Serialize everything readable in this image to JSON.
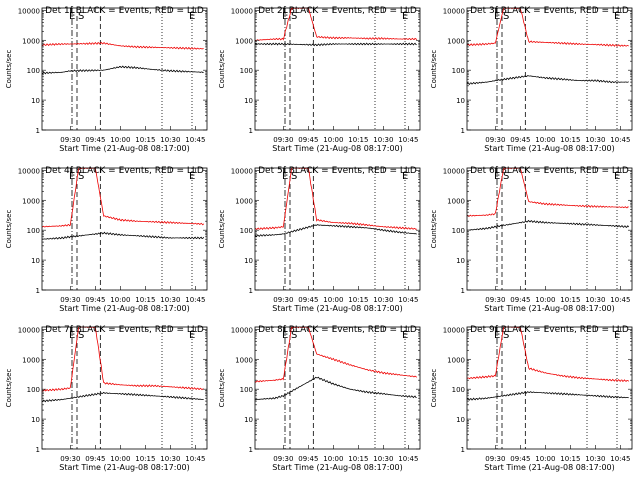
{
  "axis_labels": {
    "ylabel": "Counts/sec",
    "xlabel": "Start Time (21-Aug-08 08:17:00)",
    "xticks": [
      "09:30",
      "09:45",
      "10:00",
      "10:15",
      "10:30",
      "10:45"
    ],
    "yticks": [
      "1",
      "10",
      "100",
      "1000",
      "10000"
    ]
  },
  "region_markers": [
    "E",
    "S",
    "E"
  ],
  "colors": {
    "events": "#000000",
    "lld": "#ee0000",
    "axes": "#000000"
  },
  "chart_data": [
    {
      "type": "line",
      "title": "Det 1f BLACK = Events, RED = LLD",
      "x_range": [
        "09:13",
        "10:52"
      ],
      "ylim": [
        1,
        12000
      ],
      "y_scale": "log",
      "vertical_lines": [
        {
          "x": "09:31",
          "style": "dash-dot"
        },
        {
          "x": "09:34",
          "style": "dashed"
        },
        {
          "x": "09:48",
          "style": "dashed"
        },
        {
          "x": "10:25",
          "style": "dotted"
        },
        {
          "x": "10:43",
          "style": "dotted"
        }
      ],
      "series": [
        {
          "name": "Events",
          "color": "#000000",
          "x": [
            "09:13",
            "09:25",
            "09:30",
            "09:50",
            "10:00",
            "10:10",
            "10:20",
            "10:30",
            "10:40",
            "10:50"
          ],
          "values": [
            80,
            85,
            95,
            100,
            130,
            120,
            105,
            95,
            90,
            85
          ]
        },
        {
          "name": "LLD",
          "color": "#ee0000",
          "x": [
            "09:13",
            "09:25",
            "09:30",
            "09:50",
            "10:00",
            "10:10",
            "10:20",
            "10:30",
            "10:40",
            "10:50"
          ],
          "values": [
            700,
            750,
            750,
            800,
            650,
            600,
            580,
            560,
            540,
            520
          ]
        }
      ]
    },
    {
      "type": "line",
      "title": "Det 2f BLACK = Events, RED = LLD",
      "x_range": [
        "09:13",
        "10:52"
      ],
      "ylim": [
        1,
        12000
      ],
      "y_scale": "log",
      "vertical_lines": [
        {
          "x": "09:31",
          "style": "dash-dot"
        },
        {
          "x": "09:34",
          "style": "dashed"
        },
        {
          "x": "09:48",
          "style": "dashed"
        },
        {
          "x": "10:25",
          "style": "dotted"
        },
        {
          "x": "10:43",
          "style": "dotted"
        }
      ],
      "series": [
        {
          "name": "Events",
          "color": "#000000",
          "x": [
            "09:13",
            "09:25",
            "09:30",
            "09:50",
            "10:00",
            "10:10",
            "10:20",
            "10:30",
            "10:40",
            "10:50"
          ],
          "values": [
            750,
            750,
            750,
            700,
            750,
            750,
            750,
            750,
            750,
            750
          ]
        },
        {
          "name": "LLD",
          "color": "#ee0000",
          "x": [
            "09:13",
            "09:25",
            "09:30",
            "09:35",
            "09:45",
            "09:50",
            "10:00",
            "10:10",
            "10:20",
            "10:30",
            "10:40",
            "10:50"
          ],
          "values": [
            1000,
            1100,
            1100,
            12000,
            12000,
            1300,
            1200,
            1200,
            1150,
            1150,
            1100,
            1100
          ]
        }
      ]
    },
    {
      "type": "line",
      "title": "Det 3f BLACK = Events, RED = LLD",
      "x_range": [
        "09:13",
        "10:52"
      ],
      "ylim": [
        1,
        12000
      ],
      "y_scale": "log",
      "vertical_lines": [
        {
          "x": "09:31",
          "style": "dash-dot"
        },
        {
          "x": "09:34",
          "style": "dashed"
        },
        {
          "x": "09:48",
          "style": "dashed"
        },
        {
          "x": "10:25",
          "style": "dotted"
        },
        {
          "x": "10:43",
          "style": "dotted"
        }
      ],
      "series": [
        {
          "name": "Events",
          "color": "#000000",
          "x": [
            "09:13",
            "09:25",
            "09:30",
            "09:50",
            "10:00",
            "10:10",
            "10:20",
            "10:30",
            "10:40",
            "10:50"
          ],
          "values": [
            35,
            40,
            45,
            65,
            55,
            50,
            45,
            45,
            40,
            40
          ]
        },
        {
          "name": "LLD",
          "color": "#ee0000",
          "x": [
            "09:13",
            "09:25",
            "09:30",
            "09:35",
            "09:45",
            "09:50",
            "10:00",
            "10:10",
            "10:20",
            "10:30",
            "10:40",
            "10:50"
          ],
          "values": [
            700,
            750,
            800,
            12000,
            12000,
            900,
            850,
            800,
            750,
            720,
            680,
            650
          ]
        }
      ]
    },
    {
      "type": "line",
      "title": "Det 4f BLACK = Events, RED = LLD",
      "x_range": [
        "09:13",
        "10:52"
      ],
      "ylim": [
        1,
        12000
      ],
      "y_scale": "log",
      "vertical_lines": [
        {
          "x": "09:31",
          "style": "dash-dot"
        },
        {
          "x": "09:34",
          "style": "dashed"
        },
        {
          "x": "09:48",
          "style": "dashed"
        },
        {
          "x": "10:25",
          "style": "dotted"
        },
        {
          "x": "10:43",
          "style": "dotted"
        }
      ],
      "series": [
        {
          "name": "Events",
          "color": "#000000",
          "x": [
            "09:13",
            "09:25",
            "09:30",
            "09:50",
            "10:00",
            "10:10",
            "10:20",
            "10:30",
            "10:40",
            "10:50"
          ],
          "values": [
            50,
            55,
            60,
            80,
            70,
            65,
            60,
            55,
            55,
            55
          ]
        },
        {
          "name": "LLD",
          "color": "#ee0000",
          "x": [
            "09:13",
            "09:25",
            "09:30",
            "09:35",
            "09:45",
            "09:50",
            "10:00",
            "10:10",
            "10:20",
            "10:30",
            "10:40",
            "10:50"
          ],
          "values": [
            130,
            140,
            150,
            12000,
            12000,
            300,
            220,
            200,
            190,
            180,
            170,
            160
          ]
        }
      ]
    },
    {
      "type": "line",
      "title": "Det 5f BLACK = Events, RED = LLD",
      "x_range": [
        "09:13",
        "10:52"
      ],
      "ylim": [
        1,
        12000
      ],
      "y_scale": "log",
      "vertical_lines": [
        {
          "x": "09:31",
          "style": "dash-dot"
        },
        {
          "x": "09:34",
          "style": "dashed"
        },
        {
          "x": "09:48",
          "style": "dashed"
        },
        {
          "x": "10:25",
          "style": "dotted"
        },
        {
          "x": "10:43",
          "style": "dotted"
        }
      ],
      "series": [
        {
          "name": "Events",
          "color": "#000000",
          "x": [
            "09:13",
            "09:25",
            "09:30",
            "09:50",
            "10:00",
            "10:10",
            "10:20",
            "10:30",
            "10:40",
            "10:50"
          ],
          "values": [
            65,
            70,
            75,
            150,
            140,
            130,
            120,
            100,
            85,
            75
          ]
        },
        {
          "name": "LLD",
          "color": "#ee0000",
          "x": [
            "09:13",
            "09:25",
            "09:30",
            "09:35",
            "09:45",
            "09:50",
            "10:00",
            "10:10",
            "10:20",
            "10:30",
            "10:40",
            "10:50"
          ],
          "values": [
            110,
            120,
            130,
            12000,
            12000,
            220,
            180,
            170,
            150,
            130,
            120,
            110
          ]
        }
      ]
    },
    {
      "type": "line",
      "title": "Det 6f BLACK = Events, RED = LLD",
      "x_range": [
        "09:13",
        "10:52"
      ],
      "ylim": [
        1,
        12000
      ],
      "y_scale": "log",
      "vertical_lines": [
        {
          "x": "09:31",
          "style": "dash-dot"
        },
        {
          "x": "09:34",
          "style": "dashed"
        },
        {
          "x": "09:48",
          "style": "dashed"
        },
        {
          "x": "10:25",
          "style": "dotted"
        },
        {
          "x": "10:43",
          "style": "dotted"
        }
      ],
      "series": [
        {
          "name": "Events",
          "color": "#000000",
          "x": [
            "09:13",
            "09:25",
            "09:30",
            "09:50",
            "10:00",
            "10:10",
            "10:20",
            "10:30",
            "10:40",
            "10:50"
          ],
          "values": [
            100,
            115,
            130,
            200,
            180,
            170,
            160,
            150,
            140,
            130
          ]
        },
        {
          "name": "LLD",
          "color": "#ee0000",
          "x": [
            "09:13",
            "09:25",
            "09:30",
            "09:35",
            "09:45",
            "09:50",
            "10:00",
            "10:10",
            "10:20",
            "10:30",
            "10:40",
            "10:50"
          ],
          "values": [
            300,
            320,
            350,
            12000,
            12000,
            900,
            750,
            700,
            650,
            620,
            600,
            580
          ]
        }
      ]
    },
    {
      "type": "line",
      "title": "Det 7f BLACK = Events, RED = LLD",
      "x_range": [
        "09:13",
        "10:52"
      ],
      "ylim": [
        1,
        12000
      ],
      "y_scale": "log",
      "vertical_lines": [
        {
          "x": "09:31",
          "style": "dash-dot"
        },
        {
          "x": "09:34",
          "style": "dashed"
        },
        {
          "x": "09:48",
          "style": "dashed"
        },
        {
          "x": "10:25",
          "style": "dotted"
        },
        {
          "x": "10:43",
          "style": "dotted"
        }
      ],
      "series": [
        {
          "name": "Events",
          "color": "#000000",
          "x": [
            "09:13",
            "09:25",
            "09:30",
            "09:50",
            "10:00",
            "10:10",
            "10:20",
            "10:30",
            "10:40",
            "10:50"
          ],
          "values": [
            40,
            45,
            50,
            75,
            70,
            65,
            60,
            55,
            50,
            45
          ]
        },
        {
          "name": "LLD",
          "color": "#ee0000",
          "x": [
            "09:13",
            "09:25",
            "09:30",
            "09:35",
            "09:45",
            "09:50",
            "10:00",
            "10:10",
            "10:20",
            "10:30",
            "10:40",
            "10:50"
          ],
          "values": [
            90,
            100,
            110,
            12000,
            12000,
            160,
            140,
            130,
            130,
            120,
            110,
            100
          ]
        }
      ]
    },
    {
      "type": "line",
      "title": "Det 8f BLACK = Events, RED = LLD",
      "x_range": [
        "09:13",
        "10:52"
      ],
      "ylim": [
        1,
        12000
      ],
      "y_scale": "log",
      "vertical_lines": [
        {
          "x": "09:31",
          "style": "dash-dot"
        },
        {
          "x": "09:34",
          "style": "dashed"
        },
        {
          "x": "09:48",
          "style": "dashed"
        },
        {
          "x": "10:25",
          "style": "dotted"
        },
        {
          "x": "10:43",
          "style": "dotted"
        }
      ],
      "series": [
        {
          "name": "Events",
          "color": "#000000",
          "x": [
            "09:13",
            "09:25",
            "09:30",
            "09:50",
            "10:00",
            "10:10",
            "10:20",
            "10:30",
            "10:40",
            "10:50"
          ],
          "values": [
            45,
            50,
            60,
            250,
            150,
            100,
            80,
            70,
            60,
            55
          ]
        },
        {
          "name": "LLD",
          "color": "#ee0000",
          "x": [
            "09:13",
            "09:25",
            "09:30",
            "09:35",
            "09:45",
            "09:50",
            "10:00",
            "10:10",
            "10:20",
            "10:30",
            "10:40",
            "10:50"
          ],
          "values": [
            180,
            200,
            220,
            12000,
            12000,
            1500,
            1000,
            650,
            450,
            350,
            300,
            260
          ]
        }
      ]
    },
    {
      "type": "line",
      "title": "Det 9f BLACK = Events, RED = LLD",
      "x_range": [
        "09:13",
        "10:52"
      ],
      "ylim": [
        1,
        12000
      ],
      "y_scale": "log",
      "vertical_lines": [
        {
          "x": "09:31",
          "style": "dash-dot"
        },
        {
          "x": "09:34",
          "style": "dashed"
        },
        {
          "x": "09:48",
          "style": "dashed"
        },
        {
          "x": "10:25",
          "style": "dotted"
        },
        {
          "x": "10:43",
          "style": "dotted"
        }
      ],
      "series": [
        {
          "name": "Events",
          "color": "#000000",
          "x": [
            "09:13",
            "09:25",
            "09:30",
            "09:50",
            "10:00",
            "10:10",
            "10:20",
            "10:30",
            "10:40",
            "10:50"
          ],
          "values": [
            45,
            50,
            55,
            80,
            75,
            70,
            65,
            60,
            55,
            52
          ]
        },
        {
          "name": "LLD",
          "color": "#ee0000",
          "x": [
            "09:13",
            "09:25",
            "09:30",
            "09:35",
            "09:45",
            "09:50",
            "10:00",
            "10:10",
            "10:20",
            "10:30",
            "10:40",
            "10:50"
          ],
          "values": [
            230,
            260,
            280,
            12000,
            12000,
            500,
            350,
            280,
            240,
            220,
            200,
            190
          ]
        }
      ]
    }
  ]
}
